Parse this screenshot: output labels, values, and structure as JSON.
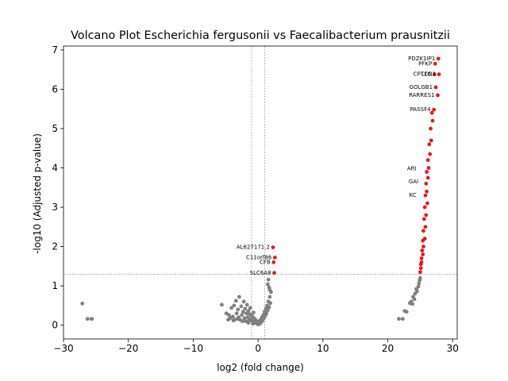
{
  "chart_data": {
    "type": "scatter",
    "title": "Volcano Plot Escherichia fergusonii vs Faecalibacterium prausnitzii",
    "xlabel": "log2 (fold change)",
    "ylabel": "-log10 (Adjusted p-value)",
    "xlim": [
      -30,
      30.7
    ],
    "ylim": [
      -0.35,
      7.1
    ],
    "xticks": [
      -30,
      -20,
      -10,
      0,
      10,
      20,
      30
    ],
    "yticks": [
      0,
      1,
      2,
      3,
      4,
      5,
      6,
      7
    ],
    "xtick_labels": [
      "−30",
      "−20",
      "−10",
      "0",
      "10",
      "20",
      "30"
    ],
    "ytick_labels": [
      "0",
      "1",
      "2",
      "3",
      "4",
      "5",
      "6",
      "7"
    ],
    "grid": false,
    "legend": "none",
    "thresholds": {
      "log2fc": [
        -1,
        1
      ],
      "neg_log10_p": 1.3
    },
    "colors": {
      "significant": "#e41a1c",
      "not_significant": "#808080",
      "threshold_line": "#808080"
    },
    "series": [
      {
        "points": [
          [
            -27.1,
            0.55
          ],
          [
            -26.3,
            0.16
          ],
          [
            -25.7,
            0.16
          ],
          [
            -25.6,
            0.16
          ],
          [
            -5.6,
            0.52
          ],
          [
            -4.9,
            0.3
          ],
          [
            -4.6,
            0.14
          ],
          [
            -4.5,
            0.26
          ],
          [
            -4.3,
            0.18
          ],
          [
            -4.1,
            0.44
          ],
          [
            -3.9,
            0.22
          ],
          [
            -3.7,
            0.5
          ],
          [
            -3.6,
            0.14
          ],
          [
            -3.4,
            0.62
          ],
          [
            -3.3,
            0.3
          ],
          [
            -3.1,
            0.4
          ],
          [
            -3.0,
            0.2
          ],
          [
            -2.9,
            0.72
          ],
          [
            -2.8,
            0.14
          ],
          [
            -2.6,
            0.48
          ],
          [
            -2.5,
            0.26
          ],
          [
            -2.3,
            0.34
          ],
          [
            -2.2,
            0.6
          ],
          [
            -2.1,
            0.18
          ],
          [
            -2.0,
            0.42
          ],
          [
            -1.9,
            0.1
          ],
          [
            -1.8,
            0.3
          ],
          [
            -1.7,
            0.52
          ],
          [
            -1.6,
            0.2
          ],
          [
            -1.5,
            0.36
          ],
          [
            -1.4,
            0.12
          ],
          [
            -1.3,
            0.28
          ],
          [
            -1.2,
            0.44
          ],
          [
            -1.1,
            0.16
          ],
          [
            -1.0,
            0.24
          ],
          [
            -0.9,
            0.1
          ],
          [
            -0.8,
            0.2
          ],
          [
            -0.7,
            0.32
          ],
          [
            -0.6,
            0.08
          ],
          [
            -0.5,
            0.16
          ],
          [
            -0.4,
            0.06
          ],
          [
            -0.3,
            0.12
          ],
          [
            -0.2,
            0.04
          ],
          [
            -0.1,
            0.08
          ],
          [
            0.0,
            0.02
          ],
          [
            0.1,
            0.06
          ],
          [
            0.2,
            0.1
          ],
          [
            0.3,
            0.04
          ],
          [
            0.4,
            0.14
          ],
          [
            0.5,
            0.08
          ],
          [
            0.6,
            0.2
          ],
          [
            0.7,
            0.12
          ],
          [
            0.8,
            0.26
          ],
          [
            0.9,
            0.18
          ],
          [
            1.0,
            0.34
          ],
          [
            1.1,
            0.24
          ],
          [
            1.2,
            0.42
          ],
          [
            1.3,
            0.3
          ],
          [
            1.4,
            0.5
          ],
          [
            1.5,
            0.38
          ],
          [
            1.6,
            0.6
          ],
          [
            1.7,
            0.46
          ],
          [
            1.8,
            0.72
          ],
          [
            1.9,
            0.56
          ],
          [
            2.0,
            0.84
          ],
          [
            1.8,
            0.9
          ],
          [
            1.7,
            0.96
          ],
          [
            1.5,
            1.04
          ],
          [
            1.6,
            1.16
          ],
          [
            -3.8,
            0.12
          ],
          [
            -3.2,
            0.16
          ],
          [
            -2.4,
            0.1
          ],
          [
            -1.5,
            0.06
          ],
          [
            -0.8,
            0.04
          ],
          [
            21.7,
            0.16
          ],
          [
            22.3,
            0.16
          ],
          [
            22.6,
            0.36
          ],
          [
            22.9,
            0.34
          ],
          [
            23.4,
            0.56
          ],
          [
            23.6,
            0.6
          ],
          [
            23.8,
            0.54
          ],
          [
            23.9,
            0.72
          ],
          [
            24.1,
            0.66
          ],
          [
            24.2,
            0.8
          ],
          [
            24.4,
            0.92
          ],
          [
            24.5,
            0.86
          ],
          [
            24.7,
            0.98
          ],
          [
            24.8,
            1.06
          ],
          [
            24.9,
            1.14
          ],
          [
            25.0,
            1.2
          ]
        ]
      },
      {
        "points": [
          [
            27.8,
            6.78
          ],
          [
            27.3,
            6.65
          ],
          [
            27.9,
            6.38
          ],
          [
            27.2,
            6.38
          ],
          [
            27.4,
            6.05
          ],
          [
            27.7,
            5.85
          ],
          [
            27.1,
            5.48
          ],
          [
            26.9,
            5.2
          ],
          [
            26.7,
            4.7
          ],
          [
            26.5,
            4.35
          ],
          [
            26.3,
            4.0
          ],
          [
            26.2,
            3.75
          ],
          [
            26.0,
            3.4
          ],
          [
            26.1,
            3.1
          ],
          [
            25.9,
            2.8
          ],
          [
            25.8,
            2.5
          ],
          [
            25.7,
            2.2
          ],
          [
            25.5,
            2.0
          ],
          [
            25.4,
            1.8
          ],
          [
            25.2,
            1.6
          ],
          [
            25.1,
            1.45
          ],
          [
            25.0,
            1.35
          ],
          [
            26.8,
            5.4
          ],
          [
            26.6,
            5.0
          ],
          [
            26.4,
            4.6
          ],
          [
            26.2,
            4.2
          ],
          [
            26.0,
            3.9
          ],
          [
            25.9,
            3.6
          ],
          [
            25.8,
            3.3
          ],
          [
            25.7,
            3.0
          ],
          [
            25.6,
            2.7
          ],
          [
            25.5,
            2.4
          ],
          [
            25.4,
            2.15
          ],
          [
            25.3,
            1.9
          ],
          [
            25.2,
            1.7
          ],
          [
            25.1,
            1.55
          ],
          [
            2.3,
            1.98
          ],
          [
            2.6,
            1.72
          ],
          [
            2.4,
            1.6
          ],
          [
            2.5,
            1.33
          ]
        ]
      }
    ],
    "labels": [
      {
        "text": "PDZK1IP1",
        "x": 27.8,
        "y": 6.78
      },
      {
        "text": "PFKP",
        "x": 27.3,
        "y": 6.65
      },
      {
        "text": "CPT1C",
        "x": 27.2,
        "y": 6.38
      },
      {
        "text": "LCN2",
        "x": 27.9,
        "y": 6.38
      },
      {
        "text": "GOLGB1",
        "x": 27.4,
        "y": 6.05
      },
      {
        "text": "RARRES1",
        "x": 27.7,
        "y": 5.85
      },
      {
        "text": "PASSF4",
        "x": 27.1,
        "y": 5.48
      },
      {
        "text": "GAI",
        "x": 25.2,
        "y": 3.65
      },
      {
        "text": "ARI",
        "x": 24.9,
        "y": 3.98
      },
      {
        "text": "KC",
        "x": 24.9,
        "y": 3.3
      },
      {
        "text": "AL627171.2",
        "x": 2.3,
        "y": 1.98
      },
      {
        "text": "C11orf86",
        "x": 2.6,
        "y": 1.72
      },
      {
        "text": "CFB",
        "x": 2.4,
        "y": 1.6
      },
      {
        "text": "SLC6A8",
        "x": 2.5,
        "y": 1.33
      }
    ]
  }
}
